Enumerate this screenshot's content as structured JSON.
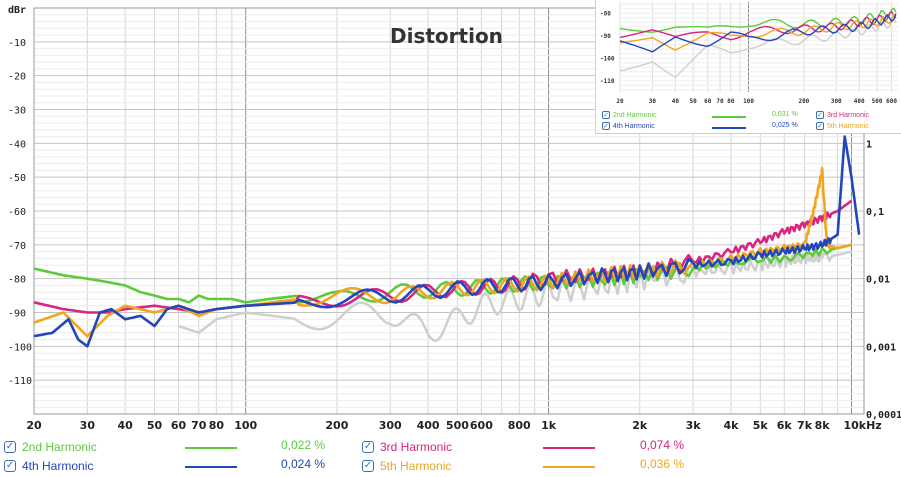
{
  "colors": {
    "h2": "#5ccb3b",
    "h3": "#d8257f",
    "h4": "#2346b8",
    "h5": "#f0a51e",
    "gray": "#cfcfcf",
    "grid_minor": "#d6d6d6",
    "grid_decade": "#8a8a8a",
    "checkbox": "#3a6fb5"
  },
  "chart_data": {
    "type": "line",
    "title": "Distortion",
    "ylabel": "dBr",
    "ylim": [
      -120,
      0
    ],
    "y_ticks": [
      "-10",
      "-20",
      "-30",
      "-40",
      "-50",
      "-60",
      "-70",
      "-80",
      "-90",
      "-100",
      "-110"
    ],
    "y_tick_values": [
      -10,
      -20,
      -30,
      -40,
      -50,
      -60,
      -70,
      -80,
      -90,
      -100,
      -110
    ],
    "right_ticks": [
      "1",
      "0,1",
      "0,01",
      "0,001",
      "0,0001"
    ],
    "right_tick_values_db": [
      -40,
      -60,
      -80,
      -100,
      -120
    ],
    "x_scale": "log",
    "xlim": [
      20,
      11000
    ],
    "x_ticks": [
      "20",
      "30",
      "40",
      "50",
      "60",
      "70",
      "80",
      "100",
      "200",
      "300",
      "400",
      "500",
      "600",
      "800",
      "1k",
      "2k",
      "3k",
      "4k",
      "5k",
      "6k",
      "7k",
      "8k",
      "10kHz"
    ],
    "x_tick_values": [
      20,
      30,
      40,
      50,
      60,
      70,
      80,
      100,
      200,
      300,
      400,
      500,
      600,
      800,
      1000,
      2000,
      3000,
      4000,
      5000,
      6000,
      7000,
      8000,
      10000
    ],
    "legend_position": "bottom",
    "series": [
      {
        "name": "2nd Harmonic",
        "key": "h2",
        "value": "0,022 %",
        "x": [
          20,
          25,
          30,
          35,
          40,
          45,
          50,
          55,
          60,
          65,
          70,
          75,
          80,
          90,
          100,
          120,
          150,
          200,
          300,
          500,
          700,
          1000,
          1500,
          2000,
          3000,
          4000,
          6000,
          8000,
          10000
        ],
        "y": [
          -77,
          -79,
          -80,
          -81,
          -82,
          -84,
          -85,
          -86,
          -86,
          -87,
          -85,
          -86,
          -86,
          -86,
          -87,
          -86,
          -85,
          -86,
          -84,
          -83,
          -82,
          -81,
          -80,
          -79,
          -77,
          -75,
          -74,
          -72,
          -70
        ]
      },
      {
        "name": "3rd Harmonic",
        "key": "h3",
        "value": "0,074 %",
        "x": [
          20,
          25,
          30,
          35,
          40,
          50,
          60,
          70,
          80,
          100,
          150,
          200,
          300,
          500,
          700,
          1000,
          1500,
          2000,
          3000,
          4000,
          5000,
          6000,
          7000,
          8000,
          9000,
          10000
        ],
        "y": [
          -87,
          -89,
          -90,
          -90,
          -89,
          -88,
          -89,
          -90,
          -89,
          -88,
          -87,
          -86,
          -85,
          -83,
          -82,
          -80,
          -79,
          -78,
          -75,
          -72,
          -69,
          -66,
          -64,
          -62,
          -60,
          -57
        ]
      },
      {
        "name": "4th Harmonic",
        "key": "h4",
        "value": "0,024 %",
        "x": [
          20,
          23,
          26,
          28,
          30,
          33,
          36,
          40,
          45,
          50,
          55,
          60,
          70,
          80,
          100,
          150,
          200,
          300,
          500,
          700,
          1000,
          1500,
          2000,
          3000,
          4000,
          5000,
          6000,
          7000,
          8000,
          9000,
          9500,
          10000,
          10600
        ],
        "y": [
          -97,
          -96,
          -92,
          -98,
          -100,
          -90,
          -89,
          -92,
          -91,
          -94,
          -89,
          -88,
          -90,
          -89,
          -88,
          -87,
          -86,
          -85,
          -83,
          -82,
          -81,
          -79,
          -78,
          -76,
          -75,
          -73,
          -72,
          -71,
          -70,
          -67,
          -38,
          -50,
          -67
        ]
      },
      {
        "name": "5th Harmonic",
        "key": "h5",
        "value": "0,036 %",
        "x": [
          20,
          25,
          30,
          35,
          40,
          50,
          60,
          70,
          80,
          100,
          150,
          200,
          300,
          500,
          700,
          1000,
          1500,
          2000,
          3000,
          4000,
          5000,
          6000,
          7000,
          7500,
          8000,
          8300,
          9000,
          10000
        ],
        "y": [
          -93,
          -90,
          -97,
          -91,
          -88,
          -90,
          -88,
          -91,
          -89,
          -88,
          -86,
          -85,
          -85,
          -83,
          -82,
          -81,
          -79,
          -78,
          -76,
          -74,
          -72,
          -71,
          -70,
          -60,
          -48,
          -70,
          -71,
          -70
        ]
      },
      {
        "key": "gray",
        "x": [
          60,
          70,
          80,
          100,
          150,
          200,
          300,
          400,
          500,
          600,
          800,
          1000,
          1500,
          2000,
          3000,
          4000,
          5000,
          6000,
          7000,
          8000,
          10000
        ],
        "y": [
          -94,
          -96,
          -92,
          -90,
          -92,
          -91,
          -90,
          -96,
          -92,
          -88,
          -86,
          -84,
          -82,
          -80,
          -78,
          -77,
          -76,
          -75,
          -74,
          -74,
          -72
        ]
      }
    ]
  },
  "legend": [
    {
      "label": "2nd Harmonic",
      "value": "0,022 %",
      "key": "h2"
    },
    {
      "label": "4th Harmonic",
      "value": "0,024 %",
      "key": "h4"
    },
    {
      "label": "3rd Harmonic",
      "value": "0,074 %",
      "key": "h3"
    },
    {
      "label": "5th Harmonic",
      "value": "0,036 %",
      "key": "h5"
    }
  ],
  "inset": {
    "y_ticks": [
      "-80",
      "-90",
      "-100",
      "-110"
    ],
    "y_tick_values": [
      -80,
      -90,
      -100,
      -110
    ],
    "ylim": [
      -115,
      -75
    ],
    "xlim": [
      20,
      650
    ],
    "x_ticks": [
      "20",
      "30",
      "40",
      "50",
      "60",
      "70",
      "80",
      "100",
      "200",
      "300",
      "400",
      "500",
      "600"
    ],
    "x_tick_values": [
      20,
      30,
      40,
      50,
      60,
      70,
      80,
      100,
      200,
      300,
      400,
      500,
      600
    ],
    "legend": [
      {
        "label": "2nd Harmonic",
        "value": "0,031 %",
        "key": "h2"
      },
      {
        "label": "3rd Harmonic",
        "key": "h3"
      },
      {
        "label": "4th Harmonic",
        "value": "0,025 %",
        "key": "h4"
      },
      {
        "label": "5th Harmonic",
        "key": "h5"
      }
    ],
    "series": [
      {
        "key": "h2",
        "x": [
          20,
          30,
          40,
          60,
          80,
          100,
          200,
          300,
          400,
          500,
          650
        ],
        "y": [
          -85,
          -87,
          -86,
          -88,
          -86,
          -84,
          -85,
          -84,
          -83,
          -81,
          -79
        ]
      },
      {
        "key": "h3",
        "x": [
          20,
          30,
          40,
          60,
          80,
          100,
          200,
          300,
          400,
          500,
          650
        ],
        "y": [
          -90,
          -88,
          -92,
          -89,
          -90,
          -88,
          -87,
          -86,
          -84,
          -83,
          -80
        ]
      },
      {
        "key": "h4",
        "x": [
          20,
          30,
          40,
          60,
          80,
          100,
          200,
          300,
          400,
          500,
          650
        ],
        "y": [
          -94,
          -98,
          -90,
          -93,
          -89,
          -92,
          -88,
          -87,
          -86,
          -84,
          -81
        ]
      },
      {
        "key": "h5",
        "x": [
          20,
          30,
          40,
          60,
          80,
          100,
          200,
          300,
          400,
          500,
          650
        ],
        "y": [
          -92,
          -89,
          -95,
          -90,
          -91,
          -89,
          -88,
          -86,
          -85,
          -84,
          -82
        ]
      },
      {
        "key": "gray",
        "x": [
          20,
          30,
          40,
          60,
          80,
          100,
          200,
          300,
          400,
          500,
          650
        ],
        "y": [
          -104,
          -100,
          -108,
          -96,
          -98,
          -94,
          -92,
          -90,
          -88,
          -86,
          -84
        ]
      }
    ]
  }
}
